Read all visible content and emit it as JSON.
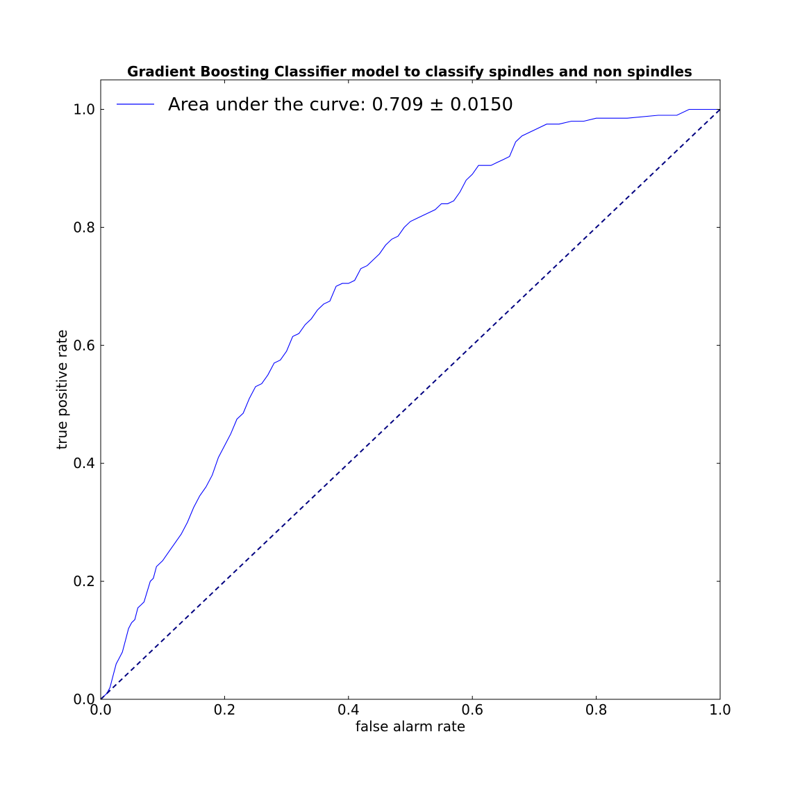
{
  "chart_data": {
    "type": "line",
    "title": "Gradient Boosting Classifier model to classify spindles and non spindles",
    "xlabel": "false alarm rate",
    "ylabel": "true positive rate",
    "xlim": [
      0.0,
      1.0
    ],
    "ylim": [
      0.0,
      1.05
    ],
    "xticks": [
      "0.0",
      "0.2",
      "0.4",
      "0.6",
      "0.8",
      "1.0"
    ],
    "yticks": [
      "0.0",
      "0.2",
      "0.4",
      "0.6",
      "0.8",
      "1.0"
    ],
    "grid": false,
    "legend_position": "top-left",
    "series": [
      {
        "name": "Area under the curve: 0.709 ± 0.0150",
        "color": "#0000ff",
        "style": "solid",
        "x": [
          0.0,
          0.01,
          0.015,
          0.02,
          0.025,
          0.03,
          0.035,
          0.04,
          0.045,
          0.05,
          0.055,
          0.06,
          0.065,
          0.07,
          0.08,
          0.085,
          0.09,
          0.1,
          0.11,
          0.12,
          0.13,
          0.14,
          0.15,
          0.16,
          0.17,
          0.18,
          0.19,
          0.2,
          0.21,
          0.22,
          0.23,
          0.24,
          0.25,
          0.26,
          0.27,
          0.28,
          0.29,
          0.3,
          0.31,
          0.32,
          0.33,
          0.34,
          0.35,
          0.36,
          0.37,
          0.38,
          0.39,
          0.4,
          0.41,
          0.42,
          0.43,
          0.44,
          0.45,
          0.46,
          0.47,
          0.48,
          0.49,
          0.5,
          0.51,
          0.52,
          0.53,
          0.54,
          0.55,
          0.56,
          0.57,
          0.58,
          0.59,
          0.6,
          0.61,
          0.62,
          0.63,
          0.64,
          0.65,
          0.66,
          0.67,
          0.68,
          0.69,
          0.7,
          0.72,
          0.74,
          0.76,
          0.78,
          0.8,
          0.85,
          0.9,
          0.93,
          0.95,
          1.0
        ],
        "y": [
          0.0,
          0.01,
          0.02,
          0.04,
          0.06,
          0.07,
          0.08,
          0.1,
          0.12,
          0.13,
          0.135,
          0.155,
          0.16,
          0.165,
          0.2,
          0.205,
          0.225,
          0.235,
          0.25,
          0.265,
          0.28,
          0.3,
          0.325,
          0.345,
          0.36,
          0.38,
          0.41,
          0.43,
          0.45,
          0.475,
          0.485,
          0.51,
          0.53,
          0.535,
          0.55,
          0.57,
          0.575,
          0.59,
          0.615,
          0.62,
          0.635,
          0.645,
          0.66,
          0.67,
          0.675,
          0.7,
          0.705,
          0.705,
          0.71,
          0.73,
          0.735,
          0.745,
          0.755,
          0.77,
          0.78,
          0.785,
          0.8,
          0.81,
          0.815,
          0.82,
          0.825,
          0.83,
          0.84,
          0.84,
          0.845,
          0.86,
          0.88,
          0.89,
          0.905,
          0.905,
          0.905,
          0.91,
          0.915,
          0.92,
          0.945,
          0.955,
          0.96,
          0.965,
          0.975,
          0.975,
          0.98,
          0.98,
          0.985,
          0.985,
          0.99,
          0.99,
          1.0,
          1.0
        ]
      },
      {
        "name": "",
        "color": "#000080",
        "style": "dashed",
        "x": [
          0.0,
          1.0
        ],
        "y": [
          0.0,
          1.0
        ]
      }
    ]
  }
}
